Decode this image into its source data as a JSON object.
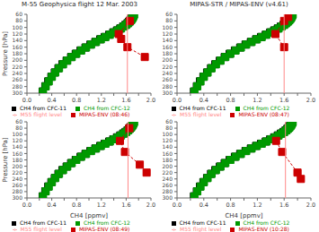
{
  "chart_data": [
    {
      "type": "line",
      "title": "M-55 Geophysica flight 12 Mar. 2003",
      "ylabel": "Pressure [hPa]",
      "xlim": [
        0.0,
        2.0
      ],
      "ylim": [
        300,
        60
      ],
      "xticks": [
        {
          "value": 0.0,
          "label": "0.0"
        },
        {
          "value": 0.2,
          "label": ""
        },
        {
          "value": 0.4,
          "label": "0.4"
        },
        {
          "value": 0.6,
          "label": ""
        },
        {
          "value": 0.8,
          "label": "0.8"
        },
        {
          "value": 1.0,
          "label": ""
        },
        {
          "value": 1.2,
          "label": "1.2"
        },
        {
          "value": 1.4,
          "label": ""
        },
        {
          "value": 1.6,
          "label": "1.6"
        },
        {
          "value": 1.8,
          "label": ""
        },
        {
          "value": 2.0,
          "label": "2.0"
        }
      ],
      "yticks": [
        60,
        80,
        100,
        120,
        140,
        160,
        180,
        200,
        220,
        240,
        260,
        280,
        300
      ],
      "grid": false,
      "legend": "bottom",
      "series": [
        {
          "name": "CH4 from CFC-11",
          "color": "#000000",
          "marker": "square",
          "line_style": "solid",
          "x": [
            1.715,
            1.71,
            1.703,
            1.694,
            1.682,
            1.667,
            1.648,
            1.622,
            1.59,
            1.552,
            1.505,
            1.452,
            1.392,
            1.326,
            1.255,
            1.181,
            1.103,
            1.024,
            0.944,
            0.865,
            0.787,
            0.712,
            0.64,
            0.572,
            0.508,
            0.449,
            0.394,
            0.343,
            0.296,
            0.253
          ],
          "y": [
            60,
            63,
            66,
            70,
            74,
            78,
            82,
            87,
            92,
            97,
            103,
            109,
            115,
            122,
            129,
            136,
            144,
            152,
            161,
            170,
            180,
            190,
            201,
            212,
            224,
            237,
            250,
            264,
            279,
            295
          ]
        },
        {
          "name": "CH4 from CFC-12",
          "color": "#009900",
          "marker": "square",
          "line_style": "solid",
          "x": [
            1.728,
            1.722,
            1.715,
            1.706,
            1.694,
            1.678,
            1.659,
            1.633,
            1.601,
            1.563,
            1.517,
            1.464,
            1.404,
            1.337,
            1.266,
            1.192,
            1.114,
            1.034,
            0.954,
            0.875,
            0.797,
            0.722,
            0.65,
            0.582,
            0.517,
            0.457,
            0.402,
            0.351,
            0.303,
            0.259
          ],
          "y": [
            60,
            63,
            66,
            70,
            74,
            78,
            82,
            87,
            92,
            97,
            103,
            109,
            115,
            122,
            129,
            136,
            144,
            152,
            161,
            170,
            180,
            190,
            201,
            212,
            224,
            237,
            250,
            264,
            279,
            295
          ]
        },
        {
          "name": "MIPAS-ENV (08:46)",
          "color": "#cc0000",
          "marker": "square",
          "line_style": "dashed",
          "x": [
            1.66,
            1.48,
            1.52,
            1.62,
            1.9
          ],
          "y": [
            80,
            120,
            135,
            160,
            190
          ],
          "error": [
            0.04,
            0.04,
            0.04,
            0.04,
            0.05
          ]
        },
        {
          "name": "M55 flight level",
          "color": "#ff8888",
          "marker": "none",
          "line_style": "solid",
          "x": [
            1.62,
            1.62
          ],
          "y": [
            60,
            300
          ]
        }
      ]
    },
    {
      "type": "line",
      "title": "MIPAS-STR / MIPAS-ENV (v4.61)",
      "xlim": [
        0.0,
        2.0
      ],
      "ylim": [
        300,
        60
      ],
      "xticks": [
        {
          "value": 0.0,
          "label": "0.0"
        },
        {
          "value": 0.2,
          "label": ""
        },
        {
          "value": 0.4,
          "label": "0.4"
        },
        {
          "value": 0.6,
          "label": ""
        },
        {
          "value": 0.8,
          "label": "0.8"
        },
        {
          "value": 1.0,
          "label": ""
        },
        {
          "value": 1.2,
          "label": "1.2"
        },
        {
          "value": 1.4,
          "label": ""
        },
        {
          "value": 1.6,
          "label": "1.6"
        },
        {
          "value": 1.8,
          "label": ""
        },
        {
          "value": 2.0,
          "label": "2.0"
        }
      ],
      "yticks": [
        60,
        80,
        100,
        120,
        140,
        160,
        180,
        200,
        220,
        240,
        260,
        280,
        300
      ],
      "grid": false,
      "legend": "bottom",
      "series": [
        {
          "name": "CH4 from CFC-11",
          "color": "#000000",
          "marker": "square",
          "line_style": "solid",
          "x": [
            1.715,
            1.71,
            1.703,
            1.694,
            1.682,
            1.667,
            1.648,
            1.622,
            1.59,
            1.552,
            1.505,
            1.452,
            1.392,
            1.326,
            1.255,
            1.181,
            1.103,
            1.024,
            0.944,
            0.865,
            0.787,
            0.712,
            0.64,
            0.572,
            0.508,
            0.449,
            0.394,
            0.343,
            0.296,
            0.253
          ],
          "y": [
            60,
            63,
            66,
            70,
            74,
            78,
            82,
            87,
            92,
            97,
            103,
            109,
            115,
            122,
            129,
            136,
            144,
            152,
            161,
            170,
            180,
            190,
            201,
            212,
            224,
            237,
            250,
            264,
            279,
            295
          ]
        },
        {
          "name": "CH4 from CFC-12",
          "color": "#009900",
          "marker": "square",
          "line_style": "solid",
          "x": [
            1.728,
            1.722,
            1.715,
            1.706,
            1.694,
            1.678,
            1.659,
            1.633,
            1.601,
            1.563,
            1.517,
            1.464,
            1.404,
            1.337,
            1.266,
            1.192,
            1.114,
            1.034,
            0.954,
            0.875,
            0.797,
            0.722,
            0.65,
            0.582,
            0.517,
            0.457,
            0.402,
            0.351,
            0.303,
            0.259
          ],
          "y": [
            60,
            63,
            66,
            70,
            74,
            78,
            82,
            87,
            92,
            97,
            103,
            109,
            115,
            122,
            129,
            136,
            144,
            152,
            161,
            170,
            180,
            190,
            201,
            212,
            224,
            237,
            250,
            264,
            279,
            295
          ]
        },
        {
          "name": "MIPAS-ENV (08:47)",
          "color": "#cc0000",
          "marker": "square",
          "line_style": "dashed",
          "x": [
            1.66,
            1.6,
            1.47,
            1.6
          ],
          "y": [
            68,
            80,
            120,
            160
          ],
          "error": [
            0.04,
            0.04,
            0.04,
            0.04
          ]
        },
        {
          "name": "M55 flight level",
          "color": "#ff8888",
          "marker": "none",
          "line_style": "solid",
          "x": [
            1.6,
            1.6
          ],
          "y": [
            60,
            300
          ]
        }
      ]
    },
    {
      "type": "line",
      "ylabel": "Pressure [hPa]",
      "xlabel": "CH4  [ppmv]",
      "xlim": [
        0.0,
        2.0
      ],
      "ylim": [
        300,
        60
      ],
      "xticks": [
        {
          "value": 0.0,
          "label": "0.0"
        },
        {
          "value": 0.2,
          "label": ""
        },
        {
          "value": 0.4,
          "label": "0.4"
        },
        {
          "value": 0.6,
          "label": ""
        },
        {
          "value": 0.8,
          "label": "0.8"
        },
        {
          "value": 1.0,
          "label": ""
        },
        {
          "value": 1.2,
          "label": "1.2"
        },
        {
          "value": 1.4,
          "label": ""
        },
        {
          "value": 1.6,
          "label": "1.6"
        },
        {
          "value": 1.8,
          "label": ""
        },
        {
          "value": 2.0,
          "label": "2.0"
        }
      ],
      "yticks": [
        60,
        80,
        100,
        120,
        140,
        160,
        180,
        200,
        220,
        240,
        260,
        280,
        300
      ],
      "grid": false,
      "legend": "bottom",
      "series": [
        {
          "name": "CH4 from CFC-11",
          "color": "#000000",
          "marker": "square",
          "line_style": "solid",
          "x": [
            1.715,
            1.71,
            1.703,
            1.694,
            1.682,
            1.667,
            1.648,
            1.622,
            1.59,
            1.552,
            1.505,
            1.452,
            1.392,
            1.326,
            1.255,
            1.181,
            1.103,
            1.024,
            0.944,
            0.865,
            0.787,
            0.712,
            0.64,
            0.572,
            0.508,
            0.449,
            0.394,
            0.343,
            0.296,
            0.253
          ],
          "y": [
            60,
            63,
            66,
            70,
            74,
            78,
            82,
            87,
            92,
            97,
            103,
            109,
            115,
            122,
            129,
            136,
            144,
            152,
            161,
            170,
            180,
            190,
            201,
            212,
            224,
            237,
            250,
            264,
            279,
            295
          ]
        },
        {
          "name": "CH4 from CFC-12",
          "color": "#009900",
          "marker": "square",
          "line_style": "solid",
          "x": [
            1.728,
            1.722,
            1.715,
            1.706,
            1.694,
            1.678,
            1.659,
            1.633,
            1.601,
            1.563,
            1.517,
            1.464,
            1.404,
            1.337,
            1.266,
            1.192,
            1.114,
            1.034,
            0.954,
            0.875,
            0.797,
            0.722,
            0.65,
            0.582,
            0.517,
            0.457,
            0.402,
            0.351,
            0.303,
            0.259
          ],
          "y": [
            60,
            63,
            66,
            70,
            74,
            78,
            82,
            87,
            92,
            97,
            103,
            109,
            115,
            122,
            129,
            136,
            144,
            152,
            161,
            170,
            180,
            190,
            201,
            212,
            224,
            237,
            250,
            264,
            279,
            295
          ]
        },
        {
          "name": "MIPAS-ENV (08:49)",
          "color": "#cc0000",
          "marker": "square",
          "line_style": "dashed",
          "x": [
            1.65,
            1.5,
            1.58,
            1.82,
            1.93
          ],
          "y": [
            80,
            120,
            155,
            195,
            220
          ],
          "error": [
            0.04,
            0.04,
            0.04,
            0.05,
            0.05
          ]
        },
        {
          "name": "M55 flight level",
          "color": "#ff8888",
          "marker": "none",
          "line_style": "solid",
          "x": [
            1.63,
            1.63
          ],
          "y": [
            60,
            300
          ]
        }
      ]
    },
    {
      "type": "line",
      "xlabel": "CH4  [ppmv]",
      "xlim": [
        0.0,
        2.0
      ],
      "ylim": [
        300,
        60
      ],
      "xticks": [
        {
          "value": 0.0,
          "label": "0.0"
        },
        {
          "value": 0.2,
          "label": ""
        },
        {
          "value": 0.4,
          "label": "0.4"
        },
        {
          "value": 0.6,
          "label": ""
        },
        {
          "value": 0.8,
          "label": "0.8"
        },
        {
          "value": 1.0,
          "label": ""
        },
        {
          "value": 1.2,
          "label": "1.2"
        },
        {
          "value": 1.4,
          "label": ""
        },
        {
          "value": 1.6,
          "label": "1.6"
        },
        {
          "value": 1.8,
          "label": ""
        },
        {
          "value": 2.0,
          "label": "2.0"
        }
      ],
      "yticks": [
        60,
        80,
        100,
        120,
        140,
        160,
        180,
        200,
        220,
        240,
        260,
        280,
        300
      ],
      "grid": false,
      "legend": "bottom",
      "series": [
        {
          "name": "CH4 from CFC-11",
          "color": "#000000",
          "marker": "square",
          "line_style": "solid",
          "x": [
            1.715,
            1.71,
            1.703,
            1.694,
            1.682,
            1.667,
            1.648,
            1.622,
            1.59,
            1.552,
            1.505,
            1.452,
            1.392,
            1.326,
            1.255,
            1.181,
            1.103,
            1.024,
            0.944,
            0.865,
            0.787,
            0.712,
            0.64,
            0.572,
            0.508,
            0.449,
            0.394,
            0.343,
            0.296,
            0.253
          ],
          "y": [
            60,
            63,
            66,
            70,
            74,
            78,
            82,
            87,
            92,
            97,
            103,
            109,
            115,
            122,
            129,
            136,
            144,
            152,
            161,
            170,
            180,
            190,
            201,
            212,
            224,
            237,
            250,
            264,
            279,
            295
          ]
        },
        {
          "name": "CH4 from CFC-12",
          "color": "#009900",
          "marker": "square",
          "line_style": "solid",
          "x": [
            1.728,
            1.722,
            1.715,
            1.706,
            1.694,
            1.678,
            1.659,
            1.633,
            1.601,
            1.563,
            1.517,
            1.464,
            1.404,
            1.337,
            1.266,
            1.192,
            1.114,
            1.034,
            0.954,
            0.875,
            0.797,
            0.722,
            0.65,
            0.582,
            0.517,
            0.457,
            0.402,
            0.351,
            0.303,
            0.259
          ],
          "y": [
            60,
            63,
            66,
            70,
            74,
            78,
            82,
            87,
            92,
            97,
            103,
            109,
            115,
            122,
            129,
            136,
            144,
            152,
            161,
            170,
            180,
            190,
            201,
            212,
            224,
            237,
            250,
            264,
            279,
            295
          ]
        },
        {
          "name": "MIPAS-ENV (10:28)",
          "color": "#cc0000",
          "marker": "square",
          "line_style": "dashed",
          "x": [
            1.48,
            1.57,
            1.8,
            1.85
          ],
          "y": [
            120,
            155,
            220,
            240
          ],
          "error": [
            0.04,
            0.04,
            0.05,
            0.05
          ]
        },
        {
          "name": "M55 flight level",
          "color": "#ff8888",
          "marker": "none",
          "line_style": "solid",
          "x": [
            1.62,
            1.62
          ],
          "y": [
            60,
            300
          ]
        }
      ]
    }
  ]
}
